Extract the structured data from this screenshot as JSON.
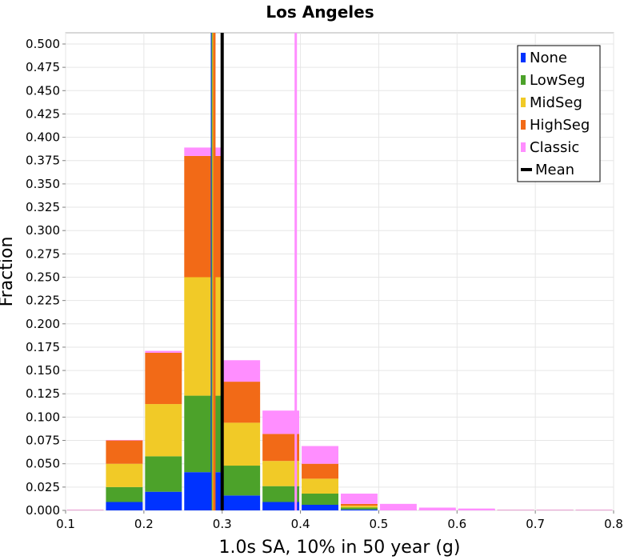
{
  "chart_data": {
    "type": "bar",
    "title": "Los Angeles",
    "xlabel": "1.0s SA, 10% in 50 year (g)",
    "ylabel": "Fraction",
    "xlim": [
      0.1,
      0.8
    ],
    "ylim": [
      0,
      0.512
    ],
    "x_ticks": [
      "0.1",
      "0.2",
      "0.3",
      "0.4",
      "0.5",
      "0.6",
      "0.7",
      "0.8"
    ],
    "y_ticks": [
      "0.000",
      "0.025",
      "0.050",
      "0.075",
      "0.100",
      "0.125",
      "0.150",
      "0.175",
      "0.200",
      "0.225",
      "0.250",
      "0.275",
      "0.300",
      "0.325",
      "0.350",
      "0.375",
      "0.400",
      "0.425",
      "0.450",
      "0.475",
      "0.500"
    ],
    "grid": true,
    "stacked": true,
    "legend_position": "top-right",
    "bin_width": 0.05,
    "bin_starts": [
      0.1,
      0.15,
      0.2,
      0.25,
      0.3,
      0.35,
      0.4,
      0.45,
      0.5,
      0.55,
      0.6,
      0.65,
      0.7,
      0.75
    ],
    "series": [
      {
        "name": "None",
        "color": "#0033ff",
        "values": [
          0,
          0.009,
          0.02,
          0.041,
          0.016,
          0.009,
          0.006,
          0.001,
          0,
          0,
          0,
          0,
          0,
          0
        ]
      },
      {
        "name": "LowSeg",
        "color": "#4ca22a",
        "values": [
          0,
          0.016,
          0.038,
          0.082,
          0.032,
          0.017,
          0.012,
          0.002,
          0,
          0,
          0,
          0,
          0,
          0
        ]
      },
      {
        "name": "MidSeg",
        "color": "#f1ca27",
        "values": [
          0,
          0.025,
          0.056,
          0.127,
          0.046,
          0.027,
          0.016,
          0.002,
          0,
          0,
          0,
          0,
          0,
          0
        ]
      },
      {
        "name": "HighSeg",
        "color": "#f26a17",
        "values": [
          0,
          0.025,
          0.055,
          0.13,
          0.044,
          0.029,
          0.016,
          0.002,
          0,
          0,
          0,
          0,
          0,
          0
        ]
      },
      {
        "name": "Classic",
        "color": "#ff8eff",
        "values": [
          0,
          0,
          0.002,
          0.009,
          0.023,
          0.025,
          0.019,
          0.011,
          0.007,
          0.003,
          0.002,
          0.0005,
          0,
          0
        ]
      }
    ],
    "mean_lines": [
      {
        "series": "None",
        "x": 0.287,
        "color": "#0033ff"
      },
      {
        "series": "LowSeg",
        "x": 0.288,
        "color": "#4ca22a"
      },
      {
        "series": "MidSeg",
        "x": 0.289,
        "color": "#f1ca27"
      },
      {
        "series": "HighSeg",
        "x": 0.29,
        "color": "#f26a17"
      },
      {
        "series": "Classic",
        "x": 0.394,
        "color": "#ff8eff"
      },
      {
        "series": "Mean",
        "x": 0.3,
        "color": "#000000"
      }
    ],
    "legend": [
      {
        "label": "None",
        "color": "#0033ff",
        "kind": "box"
      },
      {
        "label": "LowSeg",
        "color": "#4ca22a",
        "kind": "box"
      },
      {
        "label": "MidSeg",
        "color": "#f1ca27",
        "kind": "box"
      },
      {
        "label": "HighSeg",
        "color": "#f26a17",
        "kind": "box"
      },
      {
        "label": "Classic",
        "color": "#ff8eff",
        "kind": "box"
      },
      {
        "label": "Mean",
        "color": "#000000",
        "kind": "line"
      }
    ]
  }
}
